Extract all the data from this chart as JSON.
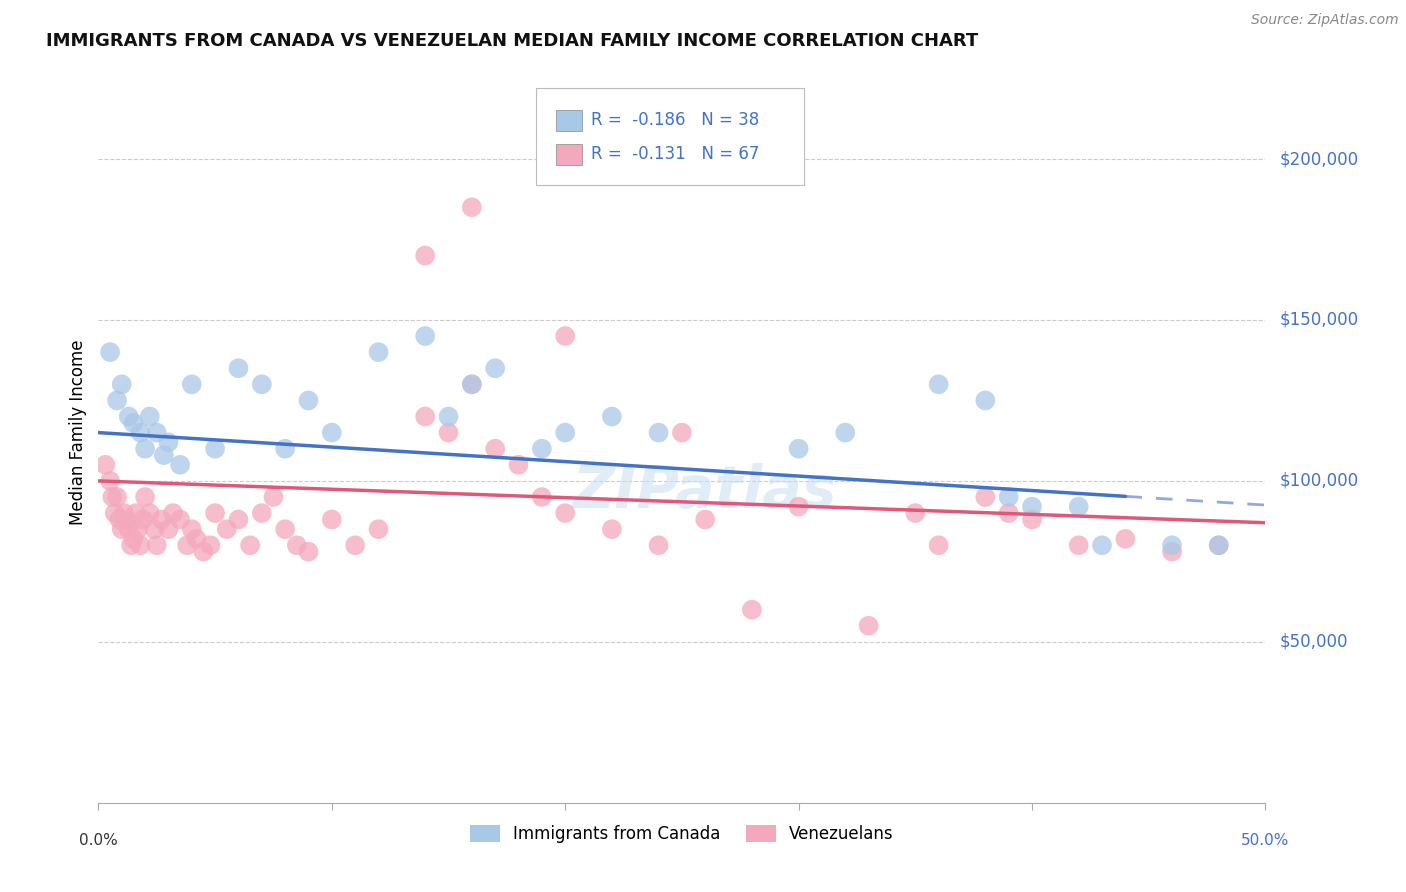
{
  "title": "IMMIGRANTS FROM CANADA VS VENEZUELAN MEDIAN FAMILY INCOME CORRELATION CHART",
  "source": "Source: ZipAtlas.com",
  "ylabel": "Median Family Income",
  "yticks": [
    50000,
    100000,
    150000,
    200000
  ],
  "ytick_labels": [
    "$50,000",
    "$100,000",
    "$150,000",
    "$200,000"
  ],
  "xlim": [
    0.0,
    0.5
  ],
  "ylim": [
    0,
    230000
  ],
  "legend_label1": "Immigrants from Canada",
  "legend_label2": "Venezuelans",
  "R1": -0.186,
  "N1": 38,
  "R2": -0.131,
  "N2": 67,
  "color_canada": "#a8c8e8",
  "color_venezuela": "#f4a8bc",
  "trendline_color_canada": "#4472c4",
  "trendline_color_venezuela": "#e05878",
  "watermark": "ZIPatlas",
  "canada_x": [
    0.005,
    0.008,
    0.01,
    0.013,
    0.015,
    0.018,
    0.02,
    0.022,
    0.025,
    0.028,
    0.03,
    0.035,
    0.04,
    0.05,
    0.06,
    0.07,
    0.08,
    0.09,
    0.1,
    0.12,
    0.14,
    0.15,
    0.16,
    0.17,
    0.19,
    0.2,
    0.22,
    0.24,
    0.3,
    0.32,
    0.36,
    0.38,
    0.39,
    0.4,
    0.42,
    0.43,
    0.46,
    0.48
  ],
  "canada_y": [
    140000,
    125000,
    130000,
    120000,
    118000,
    115000,
    110000,
    120000,
    115000,
    108000,
    112000,
    105000,
    130000,
    110000,
    135000,
    130000,
    110000,
    125000,
    115000,
    140000,
    145000,
    120000,
    130000,
    135000,
    110000,
    115000,
    120000,
    115000,
    110000,
    115000,
    130000,
    125000,
    95000,
    92000,
    92000,
    80000,
    80000,
    80000
  ],
  "venezuela_x": [
    0.003,
    0.005,
    0.006,
    0.007,
    0.008,
    0.009,
    0.01,
    0.011,
    0.012,
    0.013,
    0.014,
    0.015,
    0.016,
    0.017,
    0.018,
    0.019,
    0.02,
    0.022,
    0.024,
    0.025,
    0.027,
    0.03,
    0.032,
    0.035,
    0.038,
    0.04,
    0.042,
    0.045,
    0.048,
    0.05,
    0.055,
    0.06,
    0.065,
    0.07,
    0.075,
    0.08,
    0.085,
    0.09,
    0.1,
    0.11,
    0.12,
    0.14,
    0.15,
    0.16,
    0.17,
    0.18,
    0.19,
    0.2,
    0.22,
    0.24,
    0.26,
    0.3,
    0.33,
    0.35,
    0.38,
    0.39,
    0.4,
    0.42,
    0.44,
    0.46,
    0.48,
    0.14,
    0.16,
    0.2,
    0.25,
    0.28,
    0.36
  ],
  "venezuela_y": [
    105000,
    100000,
    95000,
    90000,
    95000,
    88000,
    85000,
    90000,
    88000,
    85000,
    80000,
    82000,
    90000,
    85000,
    80000,
    88000,
    95000,
    90000,
    85000,
    80000,
    88000,
    85000,
    90000,
    88000,
    80000,
    85000,
    82000,
    78000,
    80000,
    90000,
    85000,
    88000,
    80000,
    90000,
    95000,
    85000,
    80000,
    78000,
    88000,
    80000,
    85000,
    120000,
    115000,
    130000,
    110000,
    105000,
    95000,
    90000,
    85000,
    80000,
    88000,
    92000,
    55000,
    90000,
    95000,
    90000,
    88000,
    80000,
    82000,
    78000,
    80000,
    170000,
    185000,
    145000,
    115000,
    60000,
    80000
  ]
}
